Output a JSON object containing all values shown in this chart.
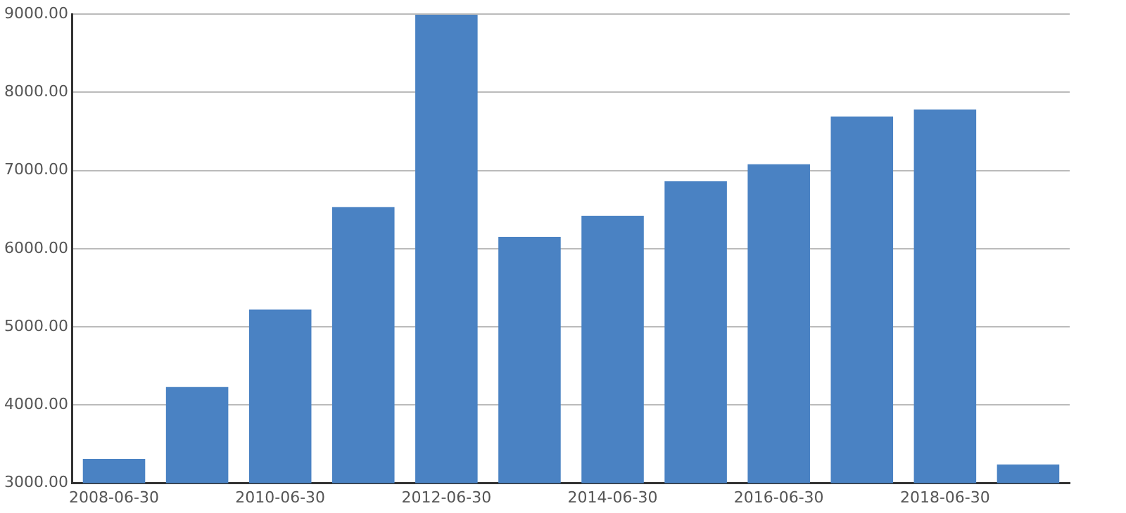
{
  "chart_data": {
    "type": "bar",
    "categories": [
      "2008-06-30",
      null,
      "2010-06-30",
      null,
      "2012-06-30",
      null,
      "2014-06-30",
      null,
      "2016-06-30",
      null,
      "2018-06-30",
      null
    ],
    "values": [
      3310,
      4230,
      5220,
      6530,
      8990,
      6150,
      6420,
      6860,
      7080,
      7690,
      7780,
      3240
    ],
    "color": "#4a82c3",
    "ylim": [
      3000,
      9000
    ],
    "yticks": [
      {
        "value": 3000,
        "label": "3000.00"
      },
      {
        "value": 4000,
        "label": "4000.00"
      },
      {
        "value": 5000,
        "label": "5000.00"
      },
      {
        "value": 6000,
        "label": "6000.00"
      },
      {
        "value": 7000,
        "label": "7000.00"
      },
      {
        "value": 8000,
        "label": "8000.00"
      },
      {
        "value": 9000,
        "label": "9000.00"
      }
    ],
    "grid": "y",
    "legend": false
  }
}
